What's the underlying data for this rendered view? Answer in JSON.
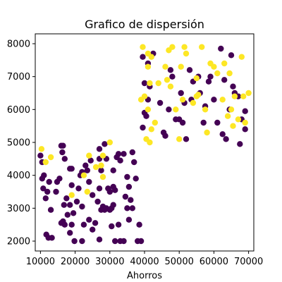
{
  "chart_data": {
    "type": "scatter",
    "title": "Grafico de dispersión",
    "xlabel": "Ahorros",
    "ylabel": "",
    "xlim": [
      8500,
      71500
    ],
    "ylim": [
      1700,
      8300
    ],
    "xticks": [
      10000,
      20000,
      30000,
      40000,
      50000,
      60000,
      70000
    ],
    "yticks": [
      2000,
      3000,
      4000,
      5000,
      6000,
      7000,
      8000
    ],
    "grid": false,
    "colors": {
      "class_0": "#440154",
      "class_1": "#fde725"
    },
    "series": [
      {
        "class": 0,
        "points": [
          [
            10000,
            4600
          ],
          [
            10500,
            4400
          ],
          [
            11000,
            4000
          ],
          [
            10500,
            3900
          ],
          [
            10800,
            3600
          ],
          [
            11500,
            3300
          ],
          [
            12000,
            3500
          ],
          [
            12500,
            3800
          ],
          [
            11700,
            2200
          ],
          [
            12300,
            2100
          ],
          [
            13300,
            2100
          ],
          [
            13000,
            2950
          ],
          [
            14500,
            3500
          ],
          [
            14800,
            3800
          ],
          [
            15500,
            3900
          ],
          [
            16000,
            4900
          ],
          [
            16300,
            4700
          ],
          [
            16500,
            4900
          ],
          [
            17000,
            4500
          ],
          [
            16800,
            3100
          ],
          [
            17500,
            3300
          ],
          [
            16500,
            2600
          ],
          [
            17800,
            2800
          ],
          [
            16000,
            2550
          ],
          [
            17000,
            2500
          ],
          [
            18500,
            4200
          ],
          [
            19000,
            4200
          ],
          [
            19000,
            3700
          ],
          [
            18500,
            3100
          ],
          [
            19500,
            2850
          ],
          [
            19000,
            2500
          ],
          [
            18500,
            2250
          ],
          [
            19800,
            2000
          ],
          [
            21500,
            4000
          ],
          [
            22000,
            4100
          ],
          [
            21000,
            3600
          ],
          [
            20500,
            3200
          ],
          [
            22000,
            3050
          ],
          [
            22500,
            2500
          ],
          [
            22000,
            2000
          ],
          [
            23500,
            4150
          ],
          [
            24000,
            3800
          ],
          [
            24000,
            2650
          ],
          [
            23000,
            4300
          ],
          [
            24500,
            4450
          ],
          [
            25000,
            2350
          ],
          [
            25000,
            3400
          ],
          [
            25800,
            2550
          ],
          [
            26500,
            3200
          ],
          [
            27000,
            4800
          ],
          [
            27000,
            4500
          ],
          [
            27500,
            4150
          ],
          [
            27000,
            3600
          ],
          [
            28000,
            3050
          ],
          [
            28500,
            2950
          ],
          [
            27500,
            2950
          ],
          [
            27000,
            2050
          ],
          [
            28500,
            4950
          ],
          [
            29000,
            4500
          ],
          [
            29500,
            3600
          ],
          [
            29000,
            3000
          ],
          [
            30000,
            2950
          ],
          [
            30500,
            3000
          ],
          [
            31000,
            3100
          ],
          [
            30000,
            3500
          ],
          [
            31000,
            3650
          ],
          [
            31500,
            3550
          ],
          [
            30500,
            2450
          ],
          [
            31000,
            4150
          ],
          [
            32000,
            4550
          ],
          [
            32500,
            4650
          ],
          [
            33000,
            4450
          ],
          [
            31500,
            2000
          ],
          [
            32500,
            2500
          ],
          [
            33000,
            2000
          ],
          [
            34000,
            2000
          ],
          [
            35000,
            3950
          ],
          [
            35500,
            3650
          ],
          [
            34500,
            3350
          ],
          [
            36000,
            3250
          ],
          [
            35000,
            3000
          ],
          [
            36500,
            3000
          ],
          [
            35500,
            2650
          ],
          [
            34000,
            4650
          ],
          [
            36500,
            4700
          ],
          [
            37000,
            4400
          ],
          [
            37500,
            3900
          ],
          [
            38500,
            2500
          ],
          [
            38000,
            2000
          ],
          [
            39000,
            2000
          ],
          [
            39500,
            7600
          ],
          [
            40000,
            6800
          ],
          [
            40500,
            5800
          ],
          [
            40000,
            5900
          ],
          [
            41000,
            6300
          ],
          [
            41500,
            6700
          ],
          [
            41000,
            7400
          ],
          [
            39500,
            5450
          ],
          [
            42500,
            7700
          ],
          [
            44500,
            6200
          ],
          [
            45500,
            5300
          ],
          [
            46000,
            5200
          ],
          [
            47000,
            6000
          ],
          [
            47500,
            7200
          ],
          [
            48000,
            7000
          ],
          [
            49000,
            5700
          ],
          [
            50000,
            5700
          ],
          [
            50500,
            6500
          ],
          [
            51000,
            5600
          ],
          [
            52000,
            5100
          ],
          [
            51500,
            6200
          ],
          [
            53000,
            7200
          ],
          [
            53500,
            6300
          ],
          [
            54000,
            6850
          ],
          [
            55500,
            7000
          ],
          [
            56000,
            6500
          ],
          [
            57000,
            5600
          ],
          [
            57500,
            6100
          ],
          [
            58500,
            6850
          ],
          [
            59000,
            7000
          ],
          [
            60000,
            6300
          ],
          [
            61000,
            5600
          ],
          [
            62000,
            7850
          ],
          [
            63000,
            6900
          ],
          [
            62500,
            5250
          ],
          [
            63500,
            5100
          ],
          [
            64500,
            6000
          ],
          [
            65000,
            7650
          ],
          [
            65500,
            6700
          ],
          [
            66000,
            6500
          ],
          [
            67000,
            6400
          ],
          [
            68000,
            5700
          ],
          [
            69000,
            5400
          ],
          [
            69000,
            5950
          ],
          [
            67500,
            4950
          ]
        ]
      },
      {
        "class": 1,
        "points": [
          [
            10300,
            4800
          ],
          [
            11500,
            4400
          ],
          [
            13000,
            4550
          ],
          [
            19000,
            3400
          ],
          [
            22500,
            4000
          ],
          [
            23500,
            3500
          ],
          [
            24000,
            4600
          ],
          [
            26000,
            4250
          ],
          [
            27500,
            4300
          ],
          [
            28000,
            3950
          ],
          [
            30000,
            5000
          ],
          [
            28000,
            4600
          ],
          [
            39000,
            6300
          ],
          [
            40000,
            6400
          ],
          [
            39500,
            7900
          ],
          [
            41000,
            7700
          ],
          [
            41000,
            7300
          ],
          [
            42000,
            7600
          ],
          [
            41500,
            6800
          ],
          [
            41000,
            6000
          ],
          [
            40500,
            5100
          ],
          [
            41500,
            5000
          ],
          [
            42000,
            5400
          ],
          [
            43000,
            5600
          ],
          [
            44000,
            6800
          ],
          [
            46000,
            7300
          ],
          [
            46500,
            6900
          ],
          [
            47000,
            7800
          ],
          [
            47500,
            6700
          ],
          [
            48000,
            7900
          ],
          [
            49000,
            6000
          ],
          [
            50000,
            5100
          ],
          [
            51000,
            6300
          ],
          [
            50500,
            7300
          ],
          [
            52000,
            7700
          ],
          [
            51500,
            7900
          ],
          [
            54000,
            6200
          ],
          [
            55000,
            6400
          ],
          [
            55500,
            6450
          ],
          [
            55000,
            6950
          ],
          [
            56500,
            7900
          ],
          [
            57500,
            6000
          ],
          [
            58000,
            5300
          ],
          [
            59000,
            7400
          ],
          [
            60000,
            7300
          ],
          [
            61000,
            7100
          ],
          [
            62500,
            6300
          ],
          [
            63000,
            7400
          ],
          [
            64000,
            5800
          ],
          [
            64500,
            7100
          ],
          [
            65000,
            6000
          ],
          [
            65500,
            5500
          ],
          [
            66000,
            6400
          ],
          [
            67000,
            5700
          ],
          [
            68000,
            7600
          ],
          [
            68500,
            6400
          ],
          [
            69000,
            5600
          ],
          [
            70000,
            6500
          ]
        ]
      }
    ]
  }
}
